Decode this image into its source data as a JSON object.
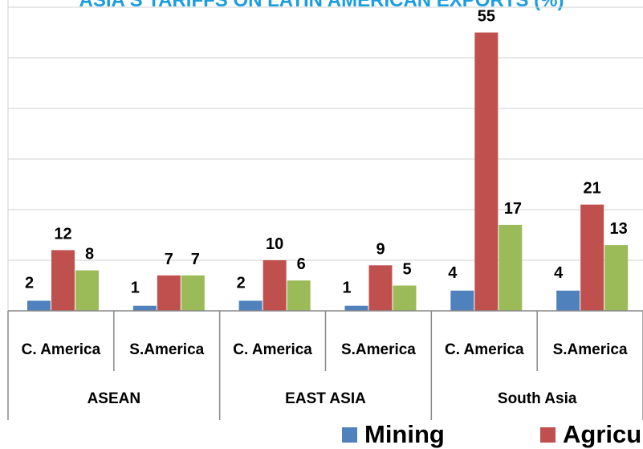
{
  "chart_data": {
    "type": "bar",
    "title": "ASIA'S TARIFFS ON LATIN AMERICAN EXPORTS (%)",
    "groups": [
      {
        "name": "ASEAN",
        "categories": [
          "C. America",
          "S.America"
        ]
      },
      {
        "name": "EAST ASIA",
        "categories": [
          "C. America",
          "S.America"
        ]
      },
      {
        "name": "South Asia",
        "categories": [
          "C. America",
          "S.America"
        ]
      }
    ],
    "categories": [
      "C. America",
      "S.America",
      "C. America",
      "S.America",
      "C. America",
      "S.America"
    ],
    "series": [
      {
        "name": "Mining",
        "color": "#4f81bd",
        "values": [
          2,
          1,
          2,
          1,
          4,
          4
        ]
      },
      {
        "name": "Agricul",
        "color": "#c0504d",
        "values": [
          12,
          7,
          10,
          9,
          55,
          21
        ]
      },
      {
        "color": "#9bbb59",
        "values": [
          8,
          7,
          6,
          5,
          17,
          13
        ]
      }
    ],
    "data_labels": [
      [
        "2",
        "1",
        "2",
        "1",
        "4",
        "4"
      ],
      [
        "12",
        "7",
        "10",
        "9",
        "55",
        "21"
      ],
      [
        "8",
        "7",
        "6",
        "5",
        "17",
        "13"
      ]
    ],
    "ylim": [
      0,
      60
    ],
    "grid": true,
    "legend_position": "bottom"
  }
}
